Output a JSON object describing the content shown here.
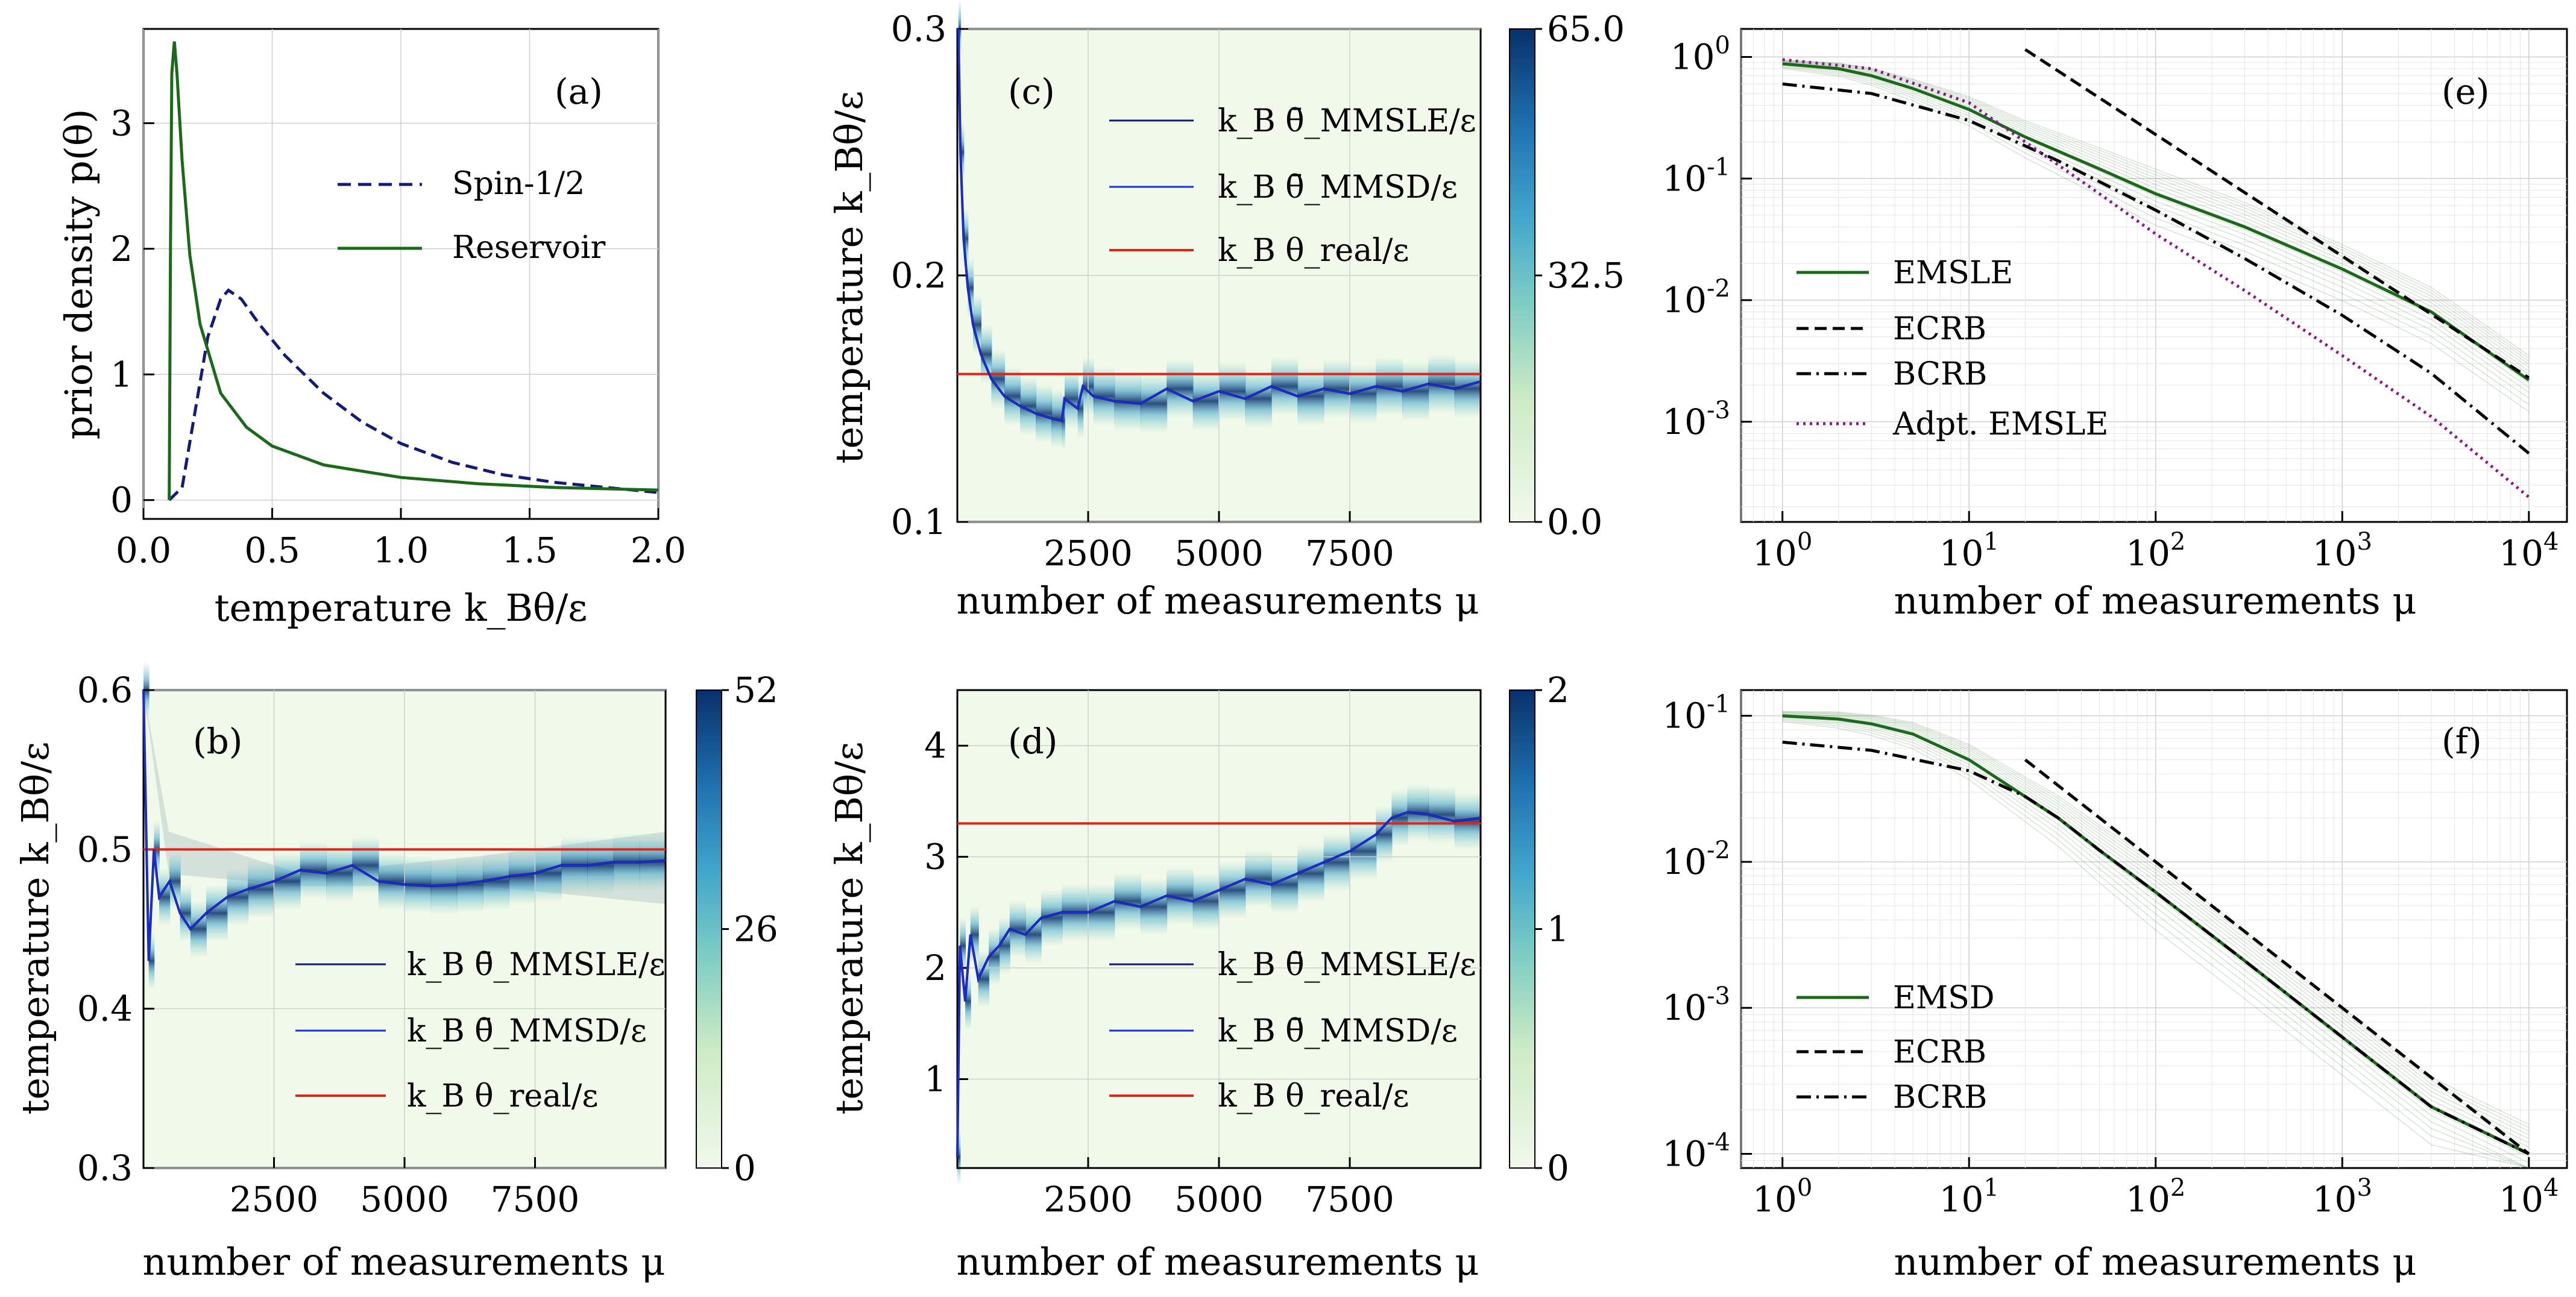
{
  "colors": {
    "green": "#1a6a1a",
    "navy": "#15197a",
    "blue": "#1a2ee0",
    "red": "#e0251b",
    "purple": "#8a1a8a",
    "heat_low": "#f1f9ea",
    "heat_mid": "#7fcdbb",
    "heat_high": "#08306b"
  },
  "chart_data": [
    {
      "id": "a",
      "type": "line",
      "panel_label": "(a)",
      "xlabel": "temperature  k_Bθ/ε",
      "ylabel": "prior density  p(θ)",
      "xlim": [
        0,
        2.0
      ],
      "ylim": [
        -0.15,
        3.75
      ],
      "xticks": [
        "0.0",
        "0.5",
        "1.0",
        "1.5",
        "2.0"
      ],
      "xtick_values": [
        0,
        0.5,
        1.0,
        1.5,
        2.0
      ],
      "yticks": [
        "0",
        "1",
        "2",
        "3"
      ],
      "ytick_values": [
        0,
        1,
        2,
        3
      ],
      "series": [
        {
          "name": "Spin-1/2",
          "style": "dashed",
          "color_key": "navy",
          "x": [
            0.1,
            0.15,
            0.2,
            0.25,
            0.3,
            0.33,
            0.38,
            0.45,
            0.55,
            0.7,
            0.85,
            1.0,
            1.2,
            1.4,
            1.6,
            1.8,
            2.0
          ],
          "y": [
            0.0,
            0.1,
            0.7,
            1.3,
            1.6,
            1.67,
            1.6,
            1.4,
            1.15,
            0.85,
            0.62,
            0.45,
            0.3,
            0.2,
            0.14,
            0.1,
            0.06
          ]
        },
        {
          "name": "Reservoir",
          "style": "solid",
          "color_key": "green",
          "x": [
            0.1,
            0.105,
            0.11,
            0.12,
            0.13,
            0.15,
            0.18,
            0.22,
            0.3,
            0.4,
            0.5,
            0.7,
            1.0,
            1.3,
            1.6,
            2.0
          ],
          "y": [
            0.0,
            2.0,
            3.4,
            3.65,
            3.4,
            2.7,
            1.95,
            1.4,
            0.85,
            0.58,
            0.43,
            0.28,
            0.18,
            0.13,
            0.1,
            0.08
          ]
        }
      ]
    },
    {
      "id": "b",
      "type": "heatmap",
      "panel_label": "(b)",
      "xlabel": "number of measurements  μ",
      "ylabel": "temperature  k_Bθ/ε",
      "xlim": [
        0,
        10000
      ],
      "ylim": [
        0.3,
        0.6
      ],
      "xticks": [
        "2500",
        "5000",
        "7500"
      ],
      "xtick_values": [
        2500,
        5000,
        7500
      ],
      "yticks": [
        "0.3",
        "0.4",
        "0.5",
        "0.6"
      ],
      "ytick_values": [
        0.3,
        0.4,
        0.5,
        0.6
      ],
      "colorbar": {
        "min": 0,
        "max": 52,
        "ticks": [
          "0",
          "26",
          "52"
        ],
        "tick_values": [
          0,
          26,
          52
        ]
      },
      "real_value": 0.5,
      "estimate": {
        "x": [
          0,
          100,
          200,
          300,
          500,
          700,
          900,
          1200,
          1600,
          2000,
          2500,
          3000,
          3500,
          4000,
          4500,
          5000,
          5500,
          6000,
          6500,
          7000,
          7500,
          8000,
          8500,
          9000,
          9500,
          10000
        ],
        "y": [
          0.6,
          0.43,
          0.5,
          0.47,
          0.48,
          0.46,
          0.45,
          0.46,
          0.47,
          0.475,
          0.48,
          0.487,
          0.485,
          0.49,
          0.48,
          0.478,
          0.477,
          0.478,
          0.48,
          0.483,
          0.485,
          0.49,
          0.49,
          0.492,
          0.492,
          0.493
        ]
      },
      "legend": [
        {
          "label": "k_B θ̄_MMSLE/ε",
          "color_key": "navy"
        },
        {
          "label": "k_B θ̄_MMSD/ε",
          "color_key": "blue"
        },
        {
          "label": "k_B θ_real/ε",
          "color_key": "red"
        }
      ]
    },
    {
      "id": "c",
      "type": "heatmap",
      "panel_label": "(c)",
      "xlabel": "number of measurements  μ",
      "ylabel": "temperature  k_Bθ/ε",
      "xlim": [
        0,
        10000
      ],
      "ylim": [
        0.1,
        0.3
      ],
      "xticks": [
        "2500",
        "5000",
        "7500"
      ],
      "xtick_values": [
        2500,
        5000,
        7500
      ],
      "yticks": [
        "0.1",
        "0.2",
        "0.3"
      ],
      "ytick_values": [
        0.1,
        0.2,
        0.3
      ],
      "colorbar": {
        "min": 0,
        "max": 65,
        "ticks": [
          "0.0",
          "32.5",
          "65.0"
        ],
        "tick_values": [
          0,
          32.5,
          65
        ]
      },
      "real_value": 0.16,
      "estimate": {
        "x": [
          20,
          60,
          120,
          200,
          300,
          450,
          650,
          900,
          1200,
          1500,
          1800,
          2000,
          2050,
          2300,
          2400,
          2600,
          3000,
          3500,
          4000,
          4500,
          5000,
          5500,
          6000,
          6500,
          7000,
          7500,
          8000,
          8500,
          9000,
          9500,
          10000
        ],
        "y": [
          0.3,
          0.25,
          0.215,
          0.195,
          0.18,
          0.168,
          0.158,
          0.151,
          0.147,
          0.144,
          0.142,
          0.141,
          0.15,
          0.146,
          0.155,
          0.151,
          0.149,
          0.148,
          0.154,
          0.149,
          0.153,
          0.15,
          0.155,
          0.151,
          0.154,
          0.152,
          0.155,
          0.153,
          0.156,
          0.154,
          0.157
        ]
      },
      "legend": [
        {
          "label": "k_B θ̄_MMSLE/ε",
          "color_key": "navy"
        },
        {
          "label": "k_B θ̄_MMSD/ε",
          "color_key": "blue"
        },
        {
          "label": "k_B θ_real/ε",
          "color_key": "red"
        }
      ]
    },
    {
      "id": "d",
      "type": "heatmap",
      "panel_label": "(d)",
      "xlabel": "number of measurements  μ",
      "ylabel": "temperature  k_Bθ/ε",
      "xlim": [
        0,
        10000
      ],
      "ylim": [
        0.2,
        4.5
      ],
      "xticks": [
        "2500",
        "5000",
        "7500"
      ],
      "xtick_values": [
        2500,
        5000,
        7500
      ],
      "yticks": [
        "1",
        "2",
        "3",
        "4"
      ],
      "ytick_values": [
        1,
        2,
        3,
        4
      ],
      "colorbar": {
        "min": 0,
        "max": 2,
        "ticks": [
          "0",
          "1",
          "2"
        ],
        "tick_values": [
          0,
          1,
          2
        ]
      },
      "real_value": 3.3,
      "estimate": {
        "x": [
          0,
          50,
          150,
          250,
          400,
          600,
          800,
          1000,
          1300,
          1600,
          2000,
          2500,
          3000,
          3500,
          4000,
          4500,
          5000,
          5500,
          6000,
          6500,
          7000,
          7500,
          8000,
          8300,
          8600,
          9000,
          9500,
          10000
        ],
        "y": [
          0.3,
          2.2,
          1.7,
          2.3,
          1.9,
          2.1,
          2.2,
          2.35,
          2.3,
          2.45,
          2.5,
          2.5,
          2.6,
          2.55,
          2.65,
          2.6,
          2.7,
          2.8,
          2.75,
          2.85,
          2.95,
          3.05,
          3.2,
          3.35,
          3.4,
          3.38,
          3.32,
          3.35
        ]
      },
      "legend": [
        {
          "label": "k_B θ̄_MMSLE/ε",
          "color_key": "navy"
        },
        {
          "label": "k_B θ̄_MMSD/ε",
          "color_key": "blue"
        },
        {
          "label": "k_B θ_real/ε",
          "color_key": "red"
        }
      ]
    },
    {
      "id": "e",
      "type": "line",
      "scale": "loglog",
      "panel_label": "(e)",
      "xlabel": "number of measurements μ",
      "ylabel": "",
      "xlim": [
        0.6,
        16000
      ],
      "ylim": [
        0.00015,
        1.7
      ],
      "xticks": [
        "10^0",
        "10^1",
        "10^2",
        "10^3",
        "10^4"
      ],
      "xtick_values": [
        1,
        10,
        100,
        1000,
        10000
      ],
      "yticks": [
        "10^0",
        "10^-1",
        "10^-2",
        "10^-3"
      ],
      "ytick_values": [
        1,
        0.1,
        0.01,
        0.001
      ],
      "series": [
        {
          "name": "EMSLE",
          "style": "solid",
          "color_key": "green",
          "x": [
            1,
            2,
            3,
            5,
            10,
            20,
            50,
            100,
            300,
            1000,
            3000,
            10000
          ],
          "y": [
            0.88,
            0.8,
            0.7,
            0.55,
            0.37,
            0.22,
            0.12,
            0.075,
            0.04,
            0.018,
            0.008,
            0.0022
          ]
        },
        {
          "name": "ECRB",
          "style": "dashed",
          "color_key": "black",
          "x": [
            20,
            10000
          ],
          "y": [
            1.15,
            0.0023
          ]
        },
        {
          "name": "BCRB",
          "style": "dashdot",
          "color_key": "black",
          "x": [
            1,
            3,
            10,
            30,
            100,
            300,
            1000,
            3000,
            10000
          ],
          "y": [
            0.6,
            0.5,
            0.3,
            0.14,
            0.055,
            0.022,
            0.0075,
            0.0025,
            0.00055
          ]
        },
        {
          "name": "Adpt. EMSLE",
          "style": "dotted",
          "color_key": "purple",
          "x": [
            1,
            3,
            10,
            20,
            50,
            100,
            300,
            1000,
            3000,
            10000
          ],
          "y": [
            0.95,
            0.8,
            0.42,
            0.2,
            0.075,
            0.035,
            0.012,
            0.0035,
            0.0011,
            0.00024
          ]
        }
      ],
      "background_curves": true
    },
    {
      "id": "f",
      "type": "line",
      "scale": "loglog",
      "panel_label": "(f)",
      "xlabel": "number of measurements μ",
      "ylabel": "",
      "xlim": [
        0.6,
        16000
      ],
      "ylim": [
        8e-05,
        0.15
      ],
      "xticks": [
        "10^0",
        "10^1",
        "10^2",
        "10^3",
        "10^4"
      ],
      "xtick_values": [
        1,
        10,
        100,
        1000,
        10000
      ],
      "yticks": [
        "10^-1",
        "10^-2",
        "10^-3",
        "10^-4"
      ],
      "ytick_values": [
        0.1,
        0.01,
        0.001,
        0.0001
      ],
      "series": [
        {
          "name": "EMSD",
          "style": "solid",
          "color_key": "green",
          "x": [
            1,
            2,
            3,
            5,
            10,
            20,
            30,
            50,
            100,
            300,
            1000,
            3000,
            10000
          ],
          "y": [
            0.1,
            0.095,
            0.088,
            0.075,
            0.05,
            0.028,
            0.02,
            0.012,
            0.0062,
            0.0021,
            0.00063,
            0.00021,
            0.0001
          ]
        },
        {
          "name": "ECRB",
          "style": "dashed",
          "color_key": "black",
          "x": [
            20,
            10000
          ],
          "y": [
            0.05,
            0.0001
          ]
        },
        {
          "name": "BCRB",
          "style": "dashdot",
          "color_key": "black",
          "x": [
            1,
            3,
            10,
            20,
            30,
            50,
            100,
            300,
            1000,
            3000,
            10000
          ],
          "y": [
            0.066,
            0.058,
            0.042,
            0.028,
            0.02,
            0.012,
            0.0062,
            0.0021,
            0.00063,
            0.00021,
            0.0001
          ]
        }
      ],
      "background_curves": true
    }
  ]
}
